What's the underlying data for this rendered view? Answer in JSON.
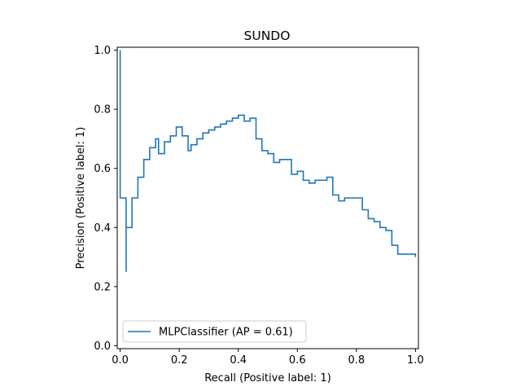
{
  "chart_data": {
    "type": "line",
    "title": "SUNDO",
    "xlabel": "Recall (Positive label: 1)",
    "ylabel": "Precision (Positive label: 1)",
    "xlim": [
      -0.01,
      1.01
    ],
    "ylim": [
      -0.01,
      1.01
    ],
    "xticks": [
      0.0,
      0.2,
      0.4,
      0.6,
      0.8,
      1.0
    ],
    "xtick_labels": [
      "0.0",
      "0.2",
      "0.4",
      "0.6",
      "0.8",
      "1.0"
    ],
    "yticks": [
      0.0,
      0.2,
      0.4,
      0.6,
      0.8,
      1.0
    ],
    "ytick_labels": [
      "0.0",
      "0.2",
      "0.4",
      "0.6",
      "0.8",
      "1.0"
    ],
    "grid": false,
    "legend_position": "lower-left",
    "series": [
      {
        "name": "MLPClassifier (AP = 0.61)",
        "color": "#1f77b4",
        "drawstyle": "steps-post",
        "x": [
          0.0,
          0.0,
          0.01,
          0.02,
          0.02,
          0.04,
          0.04,
          0.06,
          0.06,
          0.08,
          0.08,
          0.1,
          0.1,
          0.12,
          0.12,
          0.13,
          0.13,
          0.15,
          0.15,
          0.17,
          0.17,
          0.19,
          0.19,
          0.21,
          0.21,
          0.23,
          0.23,
          0.24,
          0.24,
          0.26,
          0.26,
          0.28,
          0.28,
          0.3,
          0.3,
          0.32,
          0.32,
          0.34,
          0.34,
          0.36,
          0.36,
          0.38,
          0.38,
          0.4,
          0.4,
          0.42,
          0.42,
          0.44,
          0.44,
          0.46,
          0.46,
          0.48,
          0.48,
          0.5,
          0.5,
          0.52,
          0.52,
          0.54,
          0.54,
          0.56,
          0.56,
          0.58,
          0.58,
          0.6,
          0.6,
          0.62,
          0.62,
          0.64,
          0.64,
          0.66,
          0.66,
          0.68,
          0.68,
          0.7,
          0.7,
          0.72,
          0.72,
          0.74,
          0.74,
          0.76,
          0.76,
          0.78,
          0.78,
          0.8,
          0.8,
          0.82,
          0.82,
          0.84,
          0.84,
          0.86,
          0.86,
          0.88,
          0.88,
          0.9,
          0.9,
          0.92,
          0.92,
          0.94,
          0.94,
          0.96,
          0.96,
          0.98,
          0.98,
          1.0,
          1.0
        ],
        "y": [
          1.0,
          0.5,
          0.5,
          0.25,
          0.4,
          0.4,
          0.5,
          0.5,
          0.57,
          0.57,
          0.63,
          0.63,
          0.67,
          0.67,
          0.7,
          0.7,
          0.65,
          0.65,
          0.69,
          0.69,
          0.71,
          0.71,
          0.74,
          0.74,
          0.71,
          0.71,
          0.66,
          0.66,
          0.68,
          0.68,
          0.7,
          0.7,
          0.72,
          0.72,
          0.73,
          0.73,
          0.74,
          0.74,
          0.75,
          0.75,
          0.76,
          0.76,
          0.77,
          0.77,
          0.78,
          0.78,
          0.76,
          0.76,
          0.77,
          0.77,
          0.7,
          0.7,
          0.66,
          0.66,
          0.65,
          0.65,
          0.62,
          0.62,
          0.63,
          0.63,
          0.63,
          0.63,
          0.58,
          0.58,
          0.59,
          0.59,
          0.56,
          0.56,
          0.55,
          0.55,
          0.56,
          0.56,
          0.56,
          0.56,
          0.57,
          0.57,
          0.51,
          0.51,
          0.49,
          0.49,
          0.5,
          0.5,
          0.5,
          0.5,
          0.5,
          0.5,
          0.46,
          0.46,
          0.43,
          0.43,
          0.42,
          0.42,
          0.4,
          0.4,
          0.39,
          0.39,
          0.34,
          0.34,
          0.31,
          0.31,
          0.31,
          0.31,
          0.31,
          0.31,
          0.3
        ]
      }
    ]
  }
}
